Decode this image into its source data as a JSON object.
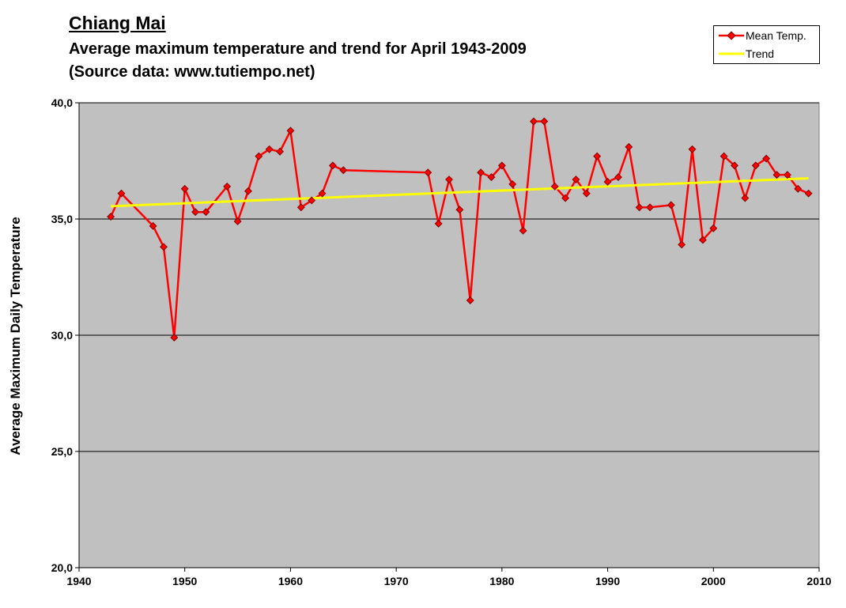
{
  "title": "Chiang Mai",
  "subtitle": "Average maximum temperature and trend for April 1943-2009",
  "source": "(Source data: www.tutiempo.net)",
  "legend": {
    "mean_label": "Mean Temp.",
    "trend_label": "Trend"
  },
  "colors": {
    "plot_background": "#c0c0c0",
    "mean_line": "#ff0000",
    "trend_line": "#ffff00",
    "marker_edge": "#800000"
  },
  "chart_data": {
    "type": "line",
    "title": "Chiang Mai",
    "subtitle": "Average maximum temperature and trend for April 1943-2009",
    "xlabel": "",
    "ylabel": "Average Maximum Daily Temperature",
    "xlim": [
      1940,
      2010
    ],
    "ylim": [
      20,
      40
    ],
    "x_ticks": [
      1940,
      1950,
      1960,
      1970,
      1980,
      1990,
      2000,
      2010
    ],
    "y_ticks": [
      "20,0",
      "25,0",
      "30,0",
      "35,0",
      "40,0"
    ],
    "y_tick_values": [
      20,
      25,
      30,
      35,
      40
    ],
    "grid": "horizontal",
    "legend_position": "top-right",
    "series": [
      {
        "name": "Mean Temp.",
        "x": [
          1943,
          1944,
          1947,
          1948,
          1949,
          1950,
          1951,
          1952,
          1954,
          1955,
          1956,
          1957,
          1958,
          1959,
          1960,
          1961,
          1962,
          1963,
          1964,
          1965,
          1973,
          1974,
          1975,
          1976,
          1977,
          1978,
          1979,
          1980,
          1981,
          1982,
          1983,
          1984,
          1985,
          1986,
          1987,
          1988,
          1989,
          1990,
          1991,
          1992,
          1993,
          1994,
          1996,
          1997,
          1998,
          1999,
          2000,
          2001,
          2002,
          2003,
          2004,
          2005,
          2006,
          2007,
          2008,
          2009
        ],
        "y": [
          35.1,
          36.1,
          34.7,
          33.8,
          29.9,
          36.3,
          35.3,
          35.3,
          36.4,
          34.9,
          36.2,
          37.7,
          38.0,
          37.9,
          38.8,
          35.5,
          35.8,
          36.1,
          37.3,
          37.1,
          37.0,
          34.8,
          36.7,
          35.4,
          31.5,
          37.0,
          36.8,
          37.3,
          36.5,
          34.5,
          39.2,
          39.2,
          36.4,
          35.9,
          36.7,
          36.1,
          37.7,
          36.6,
          36.8,
          38.1,
          35.5,
          35.5,
          35.6,
          33.9,
          38.0,
          34.1,
          34.6,
          37.7,
          37.3,
          35.9,
          37.3,
          37.6,
          36.9,
          36.9,
          36.3,
          36.1
        ]
      },
      {
        "name": "Trend",
        "x": [
          1943,
          2009
        ],
        "y": [
          35.55,
          36.75
        ]
      }
    ]
  }
}
